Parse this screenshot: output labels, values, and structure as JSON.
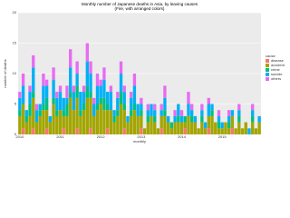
{
  "chart_data": {
    "type": "stacked_bar",
    "title": "Monthly number of Japanese deaths in Asia, by leaving causes",
    "subtitle": "(Fire, with arranged colors)",
    "x_label": "monthly",
    "y_label": "number of deaths",
    "legend_title": "cause",
    "categories": [
      "2010",
      null,
      null,
      null,
      null,
      null,
      null,
      null,
      null,
      null,
      null,
      null,
      "2011",
      null,
      null,
      null,
      null,
      null,
      null,
      null,
      null,
      null,
      null,
      null,
      "2012",
      null,
      null,
      null,
      null,
      null,
      null,
      null,
      null,
      null,
      null,
      null,
      "2013",
      null,
      null,
      null,
      null,
      null,
      null,
      null,
      null,
      null,
      null,
      null,
      "2014",
      null,
      null,
      null,
      null,
      null,
      null,
      null,
      null,
      null,
      null,
      null,
      "2015",
      null,
      null,
      null,
      null,
      null,
      null,
      null,
      null,
      null,
      null,
      null
    ],
    "series": [
      {
        "name": "disease",
        "color": "#F8766D",
        "values": [
          0,
          1,
          0,
          0,
          1,
          0,
          0,
          0,
          1,
          0,
          0,
          0,
          0,
          1,
          0,
          0,
          0,
          1,
          0,
          0,
          0,
          1,
          0,
          0,
          0,
          0,
          1,
          0,
          0,
          0,
          0,
          1,
          0,
          0,
          0,
          0,
          1,
          0,
          0,
          0,
          0,
          0,
          1,
          0,
          0,
          0,
          0,
          0,
          0,
          1,
          0,
          0,
          0,
          0,
          0,
          0,
          1,
          0,
          0,
          0,
          0,
          0,
          0,
          1,
          0,
          0,
          0,
          0,
          0,
          0,
          0,
          0
        ]
      },
      {
        "name": "accident",
        "color": "#A3A500",
        "values": [
          3,
          4,
          2,
          3,
          5,
          2,
          3,
          4,
          3,
          2,
          5,
          3,
          4,
          2,
          3,
          6,
          4,
          5,
          3,
          4,
          6,
          5,
          3,
          4,
          5,
          4,
          3,
          4,
          2,
          3,
          5,
          3,
          2,
          3,
          4,
          3,
          2,
          1,
          2,
          3,
          2,
          1,
          2,
          3,
          2,
          1,
          2,
          2,
          2,
          1,
          3,
          2,
          2,
          1,
          2,
          1,
          2,
          3,
          2,
          1,
          1,
          2,
          1,
          2,
          1,
          2,
          1,
          2,
          0,
          2,
          1,
          2
        ]
      },
      {
        "name": "crime",
        "color": "#00BF7D",
        "values": [
          1,
          0,
          1,
          2,
          1,
          0,
          1,
          1,
          2,
          0,
          1,
          1,
          0,
          1,
          2,
          1,
          0,
          2,
          1,
          1,
          2,
          1,
          0,
          1,
          1,
          2,
          1,
          0,
          1,
          1,
          2,
          1,
          0,
          1,
          1,
          0,
          1,
          0,
          1,
          0,
          1,
          0,
          0,
          1,
          0,
          1,
          0,
          1,
          0,
          1,
          0,
          1,
          0,
          0,
          1,
          0,
          0,
          1,
          0,
          1,
          0,
          0,
          1,
          0,
          0,
          1,
          0,
          0,
          0,
          1,
          0,
          0
        ]
      },
      {
        "name": "suicide",
        "color": "#00B0F6",
        "values": [
          2,
          3,
          1,
          2,
          4,
          2,
          1,
          3,
          2,
          1,
          3,
          2,
          3,
          2,
          1,
          4,
          3,
          2,
          3,
          2,
          4,
          3,
          2,
          3,
          2,
          3,
          2,
          3,
          1,
          2,
          3,
          2,
          1,
          2,
          3,
          2,
          1,
          0,
          1,
          2,
          1,
          0,
          1,
          2,
          1,
          0,
          1,
          2,
          1,
          0,
          2,
          1,
          1,
          0,
          1,
          1,
          2,
          1,
          0,
          1,
          1,
          0,
          1,
          1,
          0,
          1,
          0,
          0,
          1,
          1,
          0,
          1
        ]
      },
      {
        "name": "others",
        "color": "#E76BF3",
        "values": [
          1,
          2,
          0,
          1,
          2,
          1,
          0,
          2,
          1,
          0,
          2,
          1,
          1,
          0,
          2,
          3,
          1,
          2,
          0,
          1,
          3,
          2,
          1,
          2,
          1,
          2,
          0,
          1,
          0,
          1,
          2,
          1,
          0,
          1,
          2,
          0,
          1,
          0,
          1,
          0,
          1,
          0,
          1,
          2,
          0,
          0,
          1,
          0,
          1,
          0,
          2,
          1,
          0,
          0,
          1,
          0,
          1,
          0,
          0,
          1,
          0,
          0,
          1,
          0,
          0,
          1,
          0,
          0,
          0,
          1,
          0,
          0
        ]
      }
    ],
    "ylim": [
      0,
      20
    ],
    "yticks": [
      0,
      5,
      10,
      15,
      20
    ],
    "grid": true,
    "legend": "right"
  }
}
